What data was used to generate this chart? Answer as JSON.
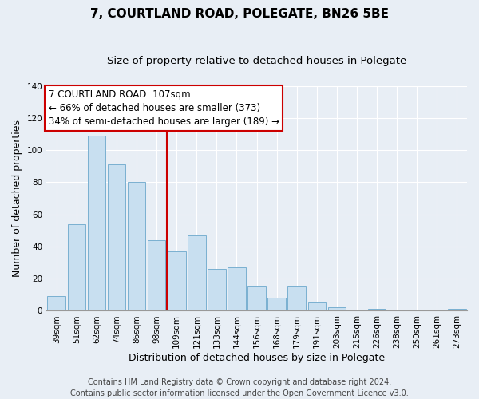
{
  "title": "7, COURTLAND ROAD, POLEGATE, BN26 5BE",
  "subtitle": "Size of property relative to detached houses in Polegate",
  "xlabel": "Distribution of detached houses by size in Polegate",
  "ylabel": "Number of detached properties",
  "categories": [
    "39sqm",
    "51sqm",
    "62sqm",
    "74sqm",
    "86sqm",
    "98sqm",
    "109sqm",
    "121sqm",
    "133sqm",
    "144sqm",
    "156sqm",
    "168sqm",
    "179sqm",
    "191sqm",
    "203sqm",
    "215sqm",
    "226sqm",
    "238sqm",
    "250sqm",
    "261sqm",
    "273sqm"
  ],
  "values": [
    9,
    54,
    109,
    91,
    80,
    44,
    37,
    47,
    26,
    27,
    15,
    8,
    15,
    5,
    2,
    0,
    1,
    0,
    0,
    0,
    1
  ],
  "bar_color": "#c8dff0",
  "bar_edge_color": "#7ab0d0",
  "highlight_index": 6,
  "highlight_line_color": "#cc0000",
  "ylim": [
    0,
    140
  ],
  "yticks": [
    0,
    20,
    40,
    60,
    80,
    100,
    120,
    140
  ],
  "annotation_title": "7 COURTLAND ROAD: 107sqm",
  "annotation_line1": "← 66% of detached houses are smaller (373)",
  "annotation_line2": "34% of semi-detached houses are larger (189) →",
  "annotation_box_color": "#ffffff",
  "annotation_box_edge": "#cc0000",
  "footer_line1": "Contains HM Land Registry data © Crown copyright and database right 2024.",
  "footer_line2": "Contains public sector information licensed under the Open Government Licence v3.0.",
  "background_color": "#e8eef5",
  "grid_color": "#ffffff",
  "title_fontsize": 11,
  "subtitle_fontsize": 9.5,
  "axis_label_fontsize": 9,
  "tick_fontsize": 7.5,
  "footer_fontsize": 7,
  "annotation_fontsize": 8.5
}
